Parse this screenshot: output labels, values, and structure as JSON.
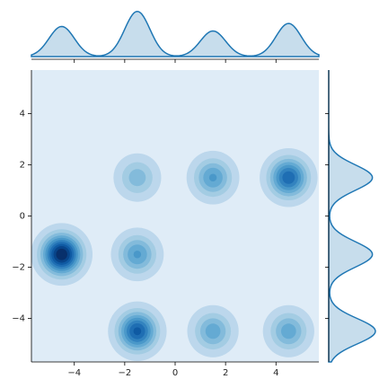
{
  "chart_data": {
    "type": "kde_joint",
    "xlim": [
      -5.7,
      5.7
    ],
    "ylim": [
      -5.7,
      5.7
    ],
    "xticks": [
      {
        "value": -4,
        "label": "−4"
      },
      {
        "value": -2,
        "label": "−2"
      },
      0,
      2,
      4
    ],
    "yticks": [
      {
        "value": -4,
        "label": "−4"
      },
      {
        "value": -2,
        "label": "−2"
      },
      0,
      2,
      4
    ],
    "bandwidth": 0.5,
    "color": "#1f77b4",
    "clusters": [
      {
        "x": -4.5,
        "y": -1.5,
        "weight": 1.0
      },
      {
        "x": -1.5,
        "y": 1.5,
        "weight": 0.3
      },
      {
        "x": -1.5,
        "y": -1.5,
        "weight": 0.45
      },
      {
        "x": -1.5,
        "y": -4.5,
        "weight": 0.75
      },
      {
        "x": 1.5,
        "y": 1.5,
        "weight": 0.45
      },
      {
        "x": 1.5,
        "y": -4.5,
        "weight": 0.4
      },
      {
        "x": 4.5,
        "y": 1.5,
        "weight": 0.7
      },
      {
        "x": 4.5,
        "y": -4.5,
        "weight": 0.4
      }
    ]
  }
}
